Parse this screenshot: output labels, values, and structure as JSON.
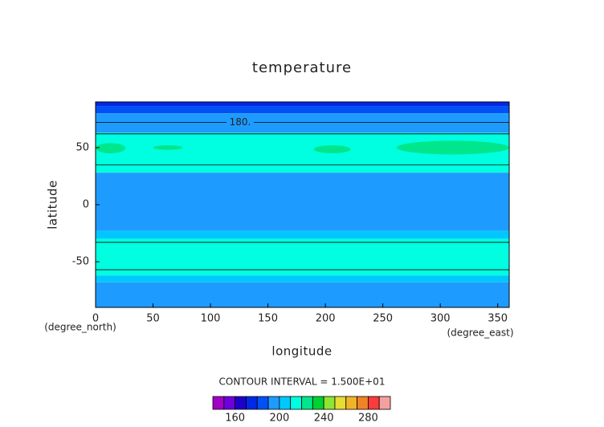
{
  "chart_data": {
    "type": "contour",
    "title": "temperature",
    "x_label": "longitude",
    "y_label": "latitude",
    "x_unit": "(degree_east)",
    "y_unit": "(degree_north)",
    "xlim": [
      0,
      360
    ],
    "ylim": [
      -90,
      90
    ],
    "xticks": [
      0,
      50,
      100,
      150,
      200,
      250,
      300,
      350
    ],
    "yticks": [
      -50,
      0,
      50
    ],
    "band_edges": [
      90,
      86,
      80,
      63,
      28,
      -23,
      -30,
      -62,
      -68,
      -90
    ],
    "band_values": [
      175,
      185,
      195,
      215,
      195,
      205,
      215,
      205,
      195
    ],
    "patches": [
      [
        0,
        26,
        45,
        54,
        225
      ],
      [
        50,
        76,
        48,
        52,
        225
      ],
      [
        190,
        222,
        45,
        52,
        225
      ],
      [
        262,
        360,
        44,
        56,
        225
      ]
    ],
    "contour_lines": [
      72,
      62,
      35,
      -33,
      -57
    ],
    "contour_label": "180.",
    "contour_interval": "CONTOUR INTERVAL = 1.500E+01",
    "colorbar": {
      "levels": [
        140,
        150,
        160,
        170,
        180,
        190,
        200,
        210,
        220,
        230,
        240,
        250,
        260,
        270,
        280,
        290,
        300
      ],
      "colors": [
        "#a000c8",
        "#6e00dc",
        "#1e00c8",
        "#0028e6",
        "#0050f5",
        "#1e9bff",
        "#00c8ff",
        "#00ffe0",
        "#00e68c",
        "#00d232",
        "#8ce632",
        "#e6dc32",
        "#f0b428",
        "#f08228",
        "#fa3c3c",
        "#f5a0a0"
      ],
      "ticks": [
        160,
        200,
        240,
        280
      ]
    }
  }
}
